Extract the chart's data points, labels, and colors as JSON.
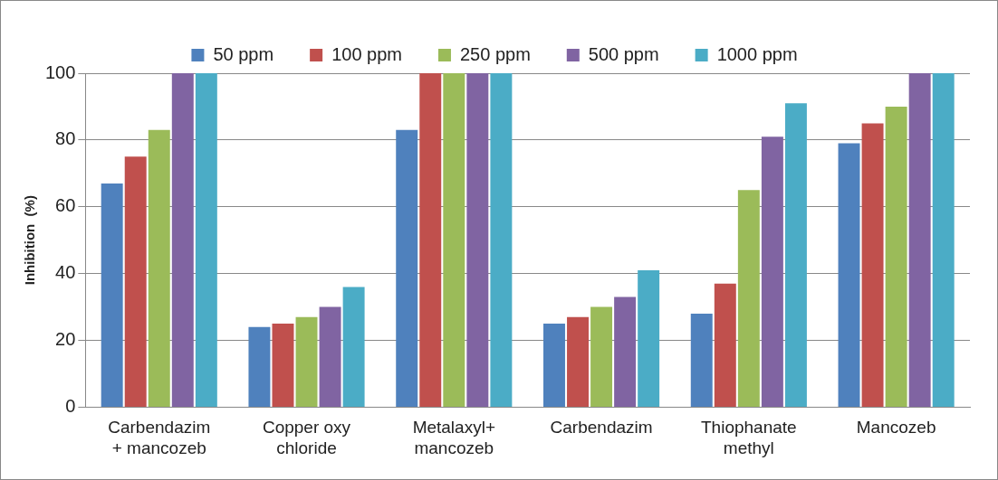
{
  "chart_data": {
    "type": "bar",
    "ylabel": "Inhibition  (%)",
    "categories": [
      "Carbendazim + mancozeb",
      "Copper oxy chloride",
      "Metalaxyl+ mancozeb",
      "Carbendazim",
      "Thiophanate methyl",
      "Mancozeb"
    ],
    "series": [
      {
        "name": "50 ppm",
        "color": "#4f81bd",
        "values": [
          67,
          24,
          83,
          25,
          28,
          79
        ]
      },
      {
        "name": "100 ppm",
        "color": "#c0504d",
        "values": [
          75,
          25,
          100,
          27,
          37,
          85
        ]
      },
      {
        "name": "250 ppm",
        "color": "#9bbb59",
        "values": [
          83,
          27,
          100,
          30,
          65,
          90
        ]
      },
      {
        "name": "500 ppm",
        "color": "#8064a2",
        "values": [
          100,
          30,
          100,
          33,
          81,
          100
        ]
      },
      {
        "name": "1000 ppm",
        "color": "#4bacc6",
        "values": [
          100,
          36,
          100,
          41,
          91,
          100
        ]
      }
    ],
    "ylim": [
      0,
      100
    ],
    "yticks": [
      0,
      20,
      40,
      60,
      80,
      100
    ],
    "grid": "y",
    "legend": "top"
  }
}
